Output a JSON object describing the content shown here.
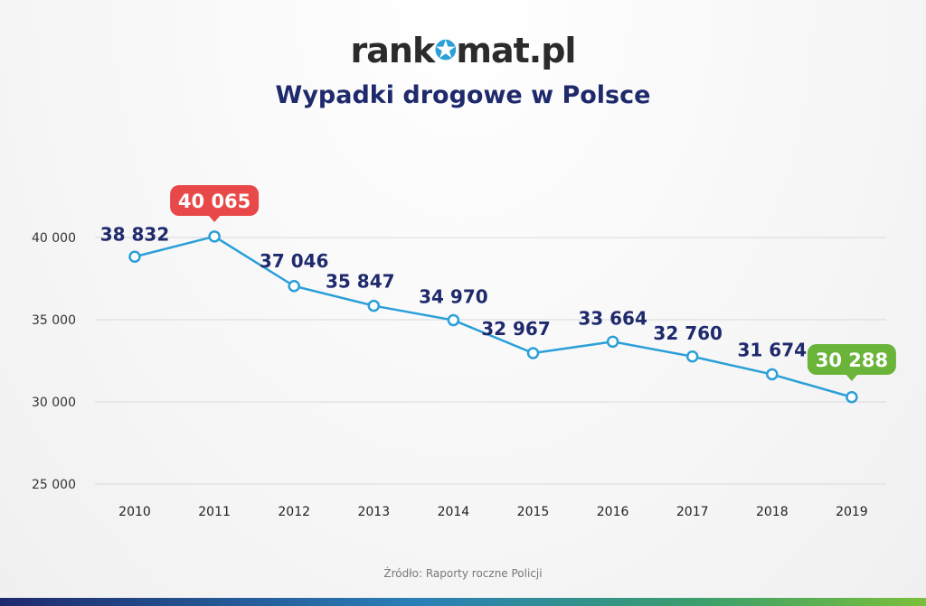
{
  "header": {
    "logo_part1": "rank",
    "logo_part2": "mat.pl",
    "title": "Wypadki drogowe w Polsce"
  },
  "footer": {
    "source": "Źródło: Raporty roczne Policji"
  },
  "colors": {
    "line": "#2a9fd8",
    "label": "#1f2a6d",
    "max_badge": "#e84848",
    "min_badge": "#6ab43a",
    "grid": "#d9d9d9"
  },
  "chart_data": {
    "type": "line",
    "title": "Wypadki drogowe w Polsce",
    "xlabel": "",
    "ylabel": "",
    "ylim": [
      25000,
      40000
    ],
    "yticks": [
      25000,
      30000,
      35000,
      40000
    ],
    "ytick_labels": [
      "25 000",
      "30 000",
      "35 000",
      "40 000"
    ],
    "grid": true,
    "categories": [
      "2010",
      "2011",
      "2012",
      "2013",
      "2014",
      "2015",
      "2016",
      "2017",
      "2018",
      "2019"
    ],
    "values": [
      38832,
      40065,
      37046,
      35847,
      34970,
      32967,
      33664,
      32760,
      31674,
      30288
    ],
    "value_labels": [
      "38 832",
      "40 065",
      "37 046",
      "35 847",
      "34 970",
      "32 967",
      "33 664",
      "32 760",
      "31 674",
      "30 288"
    ],
    "highlight_max_index": 1,
    "highlight_min_index": 9
  }
}
